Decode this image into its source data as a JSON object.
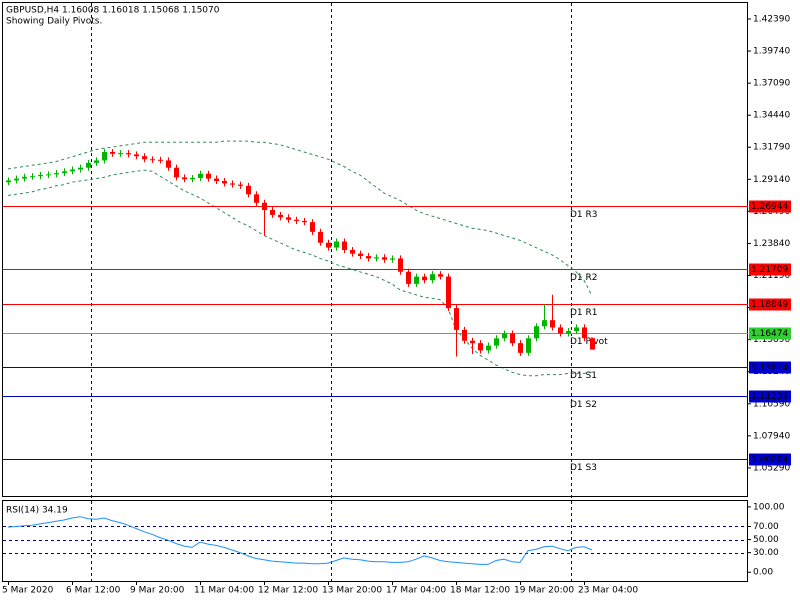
{
  "chart_data": [
    {
      "type": "candlestick",
      "title": "GBPUSD,H4  1.16008 1.16018 1.15068 1.15070",
      "subtitle": "Showing Daily Pivots.",
      "categories": [
        "5 Mar 2020",
        null,
        null,
        null,
        null,
        null,
        null,
        null,
        "6 Mar 12:00",
        null,
        null,
        null,
        null,
        null,
        null,
        null,
        "9 Mar 20:00",
        null,
        null,
        null,
        null,
        null,
        null,
        null,
        "11 Mar 04:00",
        null,
        null,
        null,
        null,
        null,
        null,
        null,
        "12 Mar 12:00",
        null,
        null,
        null,
        null,
        null,
        null,
        null,
        "13 Mar 20:00",
        null,
        null,
        null,
        null,
        null,
        null,
        null,
        "17 Mar 04:00",
        null,
        null,
        null,
        null,
        null,
        null,
        null,
        "18 Mar 12:00",
        null,
        null,
        null,
        null,
        null,
        null,
        null,
        "19 Mar 20:00",
        null,
        null,
        null,
        null,
        null,
        null,
        null,
        "23 Mar 04:00",
        null
      ],
      "open": [
        1.289,
        1.2905,
        1.292,
        1.2935,
        1.294,
        1.295,
        1.2955,
        1.2965,
        1.298,
        1.2995,
        1.301,
        1.305,
        1.307,
        1.314,
        1.3125,
        1.313,
        1.312,
        1.3105,
        1.308,
        1.3075,
        1.307,
        1.301,
        1.293,
        1.2915,
        1.2925,
        1.296,
        1.292,
        1.29,
        1.288,
        1.287,
        1.286,
        1.279,
        1.272,
        1.266,
        1.262,
        1.26,
        1.258,
        1.257,
        1.256,
        1.248,
        1.239,
        1.235,
        1.24,
        1.233,
        1.23,
        1.228,
        1.226,
        1.227,
        1.225,
        1.226,
        1.215,
        1.205,
        1.211,
        1.208,
        1.213,
        1.211,
        1.185,
        1.167,
        1.158,
        1.156,
        1.15,
        1.154,
        1.16,
        1.164,
        1.156,
        1.148,
        1.16,
        1.17,
        1.175,
        1.169,
        1.164,
        1.166,
        1.169,
        1.16008
      ],
      "high": [
        1.293,
        1.2945,
        1.296,
        1.2965,
        1.2975,
        1.298,
        1.299,
        1.3005,
        1.302,
        1.3035,
        1.3075,
        1.3095,
        1.3165,
        1.3165,
        1.3155,
        1.3155,
        1.3145,
        1.313,
        1.3105,
        1.31,
        1.3095,
        1.3035,
        1.2955,
        1.295,
        1.2985,
        1.2985,
        1.2945,
        1.2925,
        1.2905,
        1.2895,
        1.2885,
        1.2815,
        1.2745,
        1.2685,
        1.2645,
        1.2625,
        1.2605,
        1.2595,
        1.2585,
        1.2505,
        1.2415,
        1.2425,
        1.2425,
        1.2355,
        1.2325,
        1.2305,
        1.2295,
        1.2295,
        1.2285,
        1.2285,
        1.2175,
        1.2135,
        1.2135,
        1.2155,
        1.2155,
        1.2135,
        1.1875,
        1.1695,
        1.1605,
        1.1585,
        1.1565,
        1.1625,
        1.1665,
        1.1665,
        1.1585,
        1.1625,
        1.1725,
        1.188,
        1.196,
        1.1715,
        1.1685,
        1.1715,
        1.1715,
        1.16018
      ],
      "low": [
        1.2865,
        1.288,
        1.2895,
        1.291,
        1.2915,
        1.2925,
        1.293,
        1.294,
        1.2955,
        1.297,
        1.2985,
        1.3025,
        1.3045,
        1.31,
        1.31,
        1.3095,
        1.308,
        1.3055,
        1.305,
        1.3045,
        1.2985,
        1.2905,
        1.289,
        1.289,
        1.29,
        1.2895,
        1.2875,
        1.2855,
        1.2845,
        1.2835,
        1.2765,
        1.2695,
        1.245,
        1.2595,
        1.2575,
        1.2555,
        1.2545,
        1.2535,
        1.2455,
        1.2365,
        1.2325,
        1.2325,
        1.2305,
        1.2275,
        1.2255,
        1.2235,
        1.2235,
        1.2225,
        1.2225,
        1.2125,
        1.2025,
        1.2025,
        1.2055,
        1.2055,
        1.2085,
        1.1825,
        1.145,
        1.1555,
        1.147,
        1.1475,
        1.1475,
        1.1515,
        1.1575,
        1.1535,
        1.1455,
        1.1455,
        1.1575,
        1.1675,
        1.1665,
        1.1615,
        1.1615,
        1.1635,
        1.1576,
        1.15068
      ],
      "close": [
        1.2905,
        1.292,
        1.2935,
        1.294,
        1.295,
        1.2955,
        1.2965,
        1.298,
        1.2995,
        1.301,
        1.305,
        1.307,
        1.314,
        1.3125,
        1.313,
        1.312,
        1.3105,
        1.308,
        1.3075,
        1.307,
        1.301,
        1.293,
        1.2915,
        1.2925,
        1.296,
        1.292,
        1.29,
        1.288,
        1.287,
        1.286,
        1.279,
        1.272,
        1.266,
        1.262,
        1.26,
        1.258,
        1.257,
        1.256,
        1.248,
        1.239,
        1.235,
        1.24,
        1.233,
        1.23,
        1.228,
        1.226,
        1.227,
        1.225,
        1.226,
        1.215,
        1.205,
        1.211,
        1.208,
        1.213,
        1.211,
        1.185,
        1.167,
        1.158,
        1.156,
        1.15,
        1.154,
        1.16,
        1.164,
        1.156,
        1.148,
        1.16,
        1.17,
        1.175,
        1.169,
        1.164,
        1.166,
        1.169,
        1.1601,
        1.1507
      ],
      "up_color": "#00b400",
      "down_color": "#ff0000",
      "bands": [
        {
          "color": "#2e8b57",
          "values": [
            1.3,
            1.301,
            1.302,
            1.303,
            1.304,
            1.305,
            1.306,
            1.308,
            1.31,
            1.312,
            1.314,
            1.316,
            1.317,
            1.318,
            1.319,
            1.32,
            1.321,
            1.322,
            1.322,
            1.322,
            1.322,
            1.322,
            1.322,
            1.322,
            1.322,
            1.322,
            1.322,
            1.323,
            1.323,
            1.323,
            1.323,
            1.322,
            1.322,
            1.321,
            1.32,
            1.318,
            1.316,
            1.314,
            1.312,
            1.31,
            1.308,
            1.305,
            1.302,
            1.298,
            1.295,
            1.29,
            1.285,
            1.28,
            1.277,
            1.274,
            1.27,
            1.266,
            1.263,
            1.261,
            1.259,
            1.257,
            1.255,
            1.253,
            1.251,
            1.25,
            1.249,
            1.247,
            1.245,
            1.243,
            1.241,
            1.238,
            1.235,
            1.232,
            1.229,
            1.225,
            1.22,
            1.215,
            1.208,
            1.195
          ]
        },
        {
          "color": "#2e8b57",
          "values": [
            1.278,
            1.279,
            1.28,
            1.281,
            1.283,
            1.284,
            1.286,
            1.287,
            1.289,
            1.29,
            1.291,
            1.292,
            1.293,
            1.295,
            1.296,
            1.297,
            1.298,
            1.299,
            1.298,
            1.294,
            1.29,
            1.286,
            1.282,
            1.279,
            1.276,
            1.272,
            1.268,
            1.264,
            1.26,
            1.256,
            1.253,
            1.249,
            1.245,
            1.242,
            1.239,
            1.236,
            1.233,
            1.231,
            1.229,
            1.226,
            1.224,
            1.221,
            1.219,
            1.217,
            1.215,
            1.213,
            1.211,
            1.208,
            1.205,
            1.2,
            1.198,
            1.196,
            1.194,
            1.193,
            1.192,
            1.185,
            1.167,
            1.16,
            1.152,
            1.146,
            1.142,
            1.138,
            1.135,
            1.132,
            1.13,
            1.129,
            1.129,
            1.13,
            1.13,
            1.13,
            1.131,
            1.131,
            1.131,
            1.132
          ]
        }
      ],
      "pivots": [
        {
          "name": "D1 R3",
          "value": 1.26944,
          "color": "#ff0000"
        },
        {
          "name": "D1 R2",
          "value": 1.21709,
          "color": "#ff0000"
        },
        {
          "name": "D1 R1",
          "value": 1.18849,
          "color": "#ff0000"
        },
        {
          "name": "D1 Pivot",
          "value": 1.16474,
          "color": "#32cd32"
        },
        {
          "name": "D1 S1",
          "value": 1.13614,
          "color": "#0000cd"
        },
        {
          "name": "D1 S2",
          "value": 1.11239,
          "color": "#0000cd"
        },
        {
          "name": "D1 S3",
          "value": 1.06004,
          "color": "#0000cd"
        }
      ],
      "ylim": [
        1.0297,
        1.4371
      ],
      "yticks": [
        {
          "value": 1.4239,
          "label": "1.42390"
        },
        {
          "value": 1.3974,
          "label": "1.39740"
        },
        {
          "value": 1.3709,
          "label": "1.37090"
        },
        {
          "value": 1.3444,
          "label": "1.34440"
        },
        {
          "value": 1.3179,
          "label": "1.31790"
        },
        {
          "value": 1.2914,
          "label": "1.29140"
        },
        {
          "value": 1.2649,
          "label": "1.26490"
        },
        {
          "value": 1.2384,
          "label": "1.23840"
        },
        {
          "value": 1.2119,
          "label": "1.21190"
        },
        {
          "value": 1.1854,
          "label": "1.18540"
        },
        {
          "value": 1.1589,
          "label": "1.15890"
        },
        {
          "value": 1.1324,
          "label": "1.13240"
        },
        {
          "value": 1.1059,
          "label": "1.10590"
        },
        {
          "value": 1.0794,
          "label": "1.07940"
        },
        {
          "value": 1.0529,
          "label": "1.05290"
        }
      ]
    },
    {
      "type": "line",
      "title": "RSI(14) 34.19",
      "series": [
        {
          "color": "#1e90ff",
          "values": [
            69,
            70,
            71,
            72,
            74,
            76,
            78,
            80,
            83,
            85,
            82,
            81,
            83,
            79,
            76,
            72,
            67,
            62,
            58,
            53,
            49,
            44,
            40,
            38,
            46,
            43,
            41,
            38,
            34,
            30,
            25,
            21,
            19,
            17,
            16,
            15,
            14,
            14,
            13,
            13,
            14,
            18,
            22,
            20,
            19,
            17,
            16,
            16,
            15,
            15,
            16,
            20,
            25,
            22,
            18,
            16,
            15,
            14,
            13,
            12,
            12,
            18,
            20,
            16,
            15,
            33,
            35,
            39,
            40,
            36,
            33,
            38,
            39,
            34.19
          ]
        }
      ],
      "levels": [
        70,
        50,
        30
      ],
      "ylim": [
        -13.4,
        109
      ],
      "yticks": [
        {
          "value": 100,
          "label": "100.00"
        },
        {
          "value": 70,
          "label": "70.00"
        },
        {
          "value": 50,
          "label": "50.00"
        },
        {
          "value": 30,
          "label": "30.00"
        },
        {
          "value": 0,
          "label": "0.00"
        }
      ]
    }
  ]
}
